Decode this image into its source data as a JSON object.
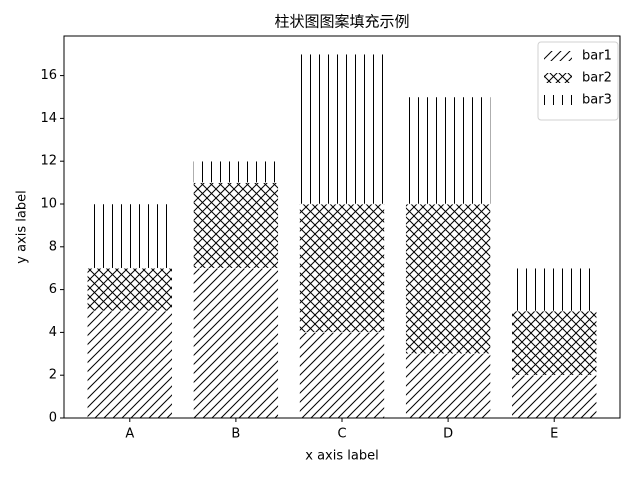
{
  "chart_data": {
    "type": "bar",
    "stacked": true,
    "title": "柱状图图案填充示例",
    "x_label": "x axis label",
    "y_label": "y axis label",
    "categories": [
      "A",
      "B",
      "C",
      "D",
      "E"
    ],
    "series": [
      {
        "name": "bar1",
        "color": "#000000",
        "hatch": "//",
        "values": [
          5,
          7,
          4,
          3,
          2
        ]
      },
      {
        "name": "bar2",
        "color": "#000000",
        "hatch": "xx",
        "values": [
          2,
          4,
          6,
          7,
          3
        ]
      },
      {
        "name": "bar3",
        "color": "#000000",
        "hatch": "||",
        "values": [
          3,
          1,
          7,
          5,
          2
        ]
      }
    ],
    "ylim": [
      0,
      17.85
    ],
    "yticks": [
      0,
      2,
      4,
      6,
      8,
      10,
      12,
      14,
      16
    ],
    "grid": false,
    "legend": "upper right"
  }
}
